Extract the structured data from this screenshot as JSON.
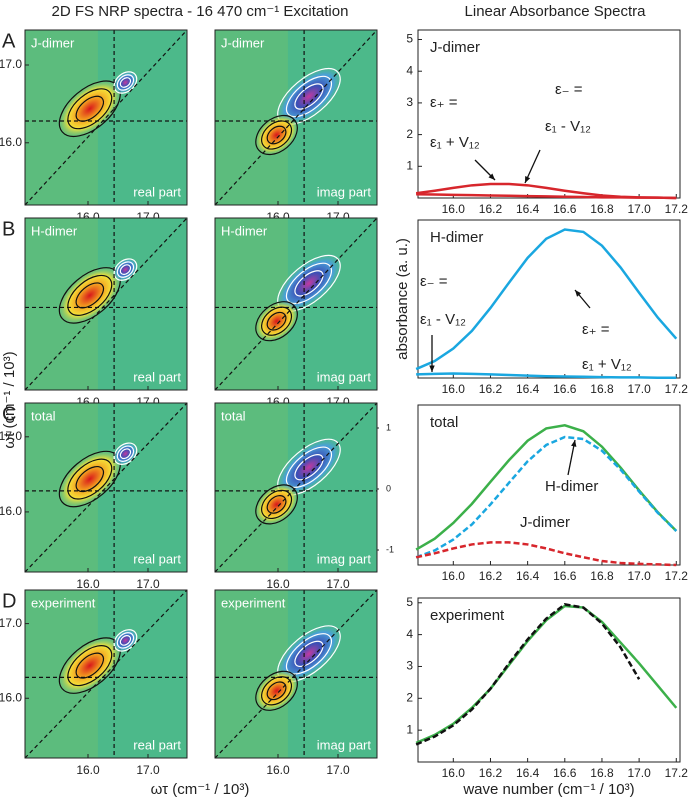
{
  "header": {
    "left_title": "2D FS NRP spectra - 16 470 cm⁻¹ Excitation",
    "right_title": "Linear Absorbance Spectra"
  },
  "panel_letters": [
    "A",
    "B",
    "C",
    "D"
  ],
  "map_axes": {
    "xlabel": "ωτ (cm⁻¹ / 10³)",
    "ylabel": "ωt (cm⁻¹ / 10³)"
  },
  "colorbar": {
    "ticks": [
      1,
      0,
      -1
    ],
    "ylim": [
      -1,
      1
    ]
  },
  "chart_data": [
    {
      "type": "map",
      "label": "J-dimer",
      "part": "real part",
      "xlim": [
        14.95,
        17.65
      ],
      "ylim": [
        15.2,
        17.45
      ],
      "xticks": [
        {
          "value": 16,
          "label": "16.0"
        },
        {
          "value": 17,
          "label": "17.0"
        }
      ],
      "yticks": [
        {
          "value": 16,
          "label": "16.0"
        },
        {
          "value": 17,
          "label": "17.0"
        }
      ]
    },
    {
      "type": "map",
      "label": "J-dimer",
      "part": "imag part",
      "xlim": [
        14.95,
        17.65
      ],
      "ylim": [
        15.2,
        17.45
      ],
      "xticks": [
        {
          "value": 16,
          "label": "16.0"
        },
        {
          "value": 17,
          "label": "17.0"
        }
      ]
    },
    {
      "type": "map",
      "label": "H-dimer",
      "part": "real part",
      "xlim": [
        14.95,
        17.65
      ],
      "ylim": [
        15.2,
        17.45
      ],
      "xticks": [
        {
          "value": 16,
          "label": "16.0"
        },
        {
          "value": 17,
          "label": "17.0"
        }
      ]
    },
    {
      "type": "map",
      "label": "H-dimer",
      "part": "imag part",
      "xlim": [
        14.95,
        17.65
      ],
      "ylim": [
        15.2,
        17.45
      ],
      "xticks": [
        {
          "value": 16,
          "label": "16.0"
        },
        {
          "value": 17,
          "label": "17.0"
        }
      ]
    },
    {
      "type": "map",
      "label": "total",
      "part": "real part",
      "xlim": [
        14.95,
        17.65
      ],
      "ylim": [
        15.2,
        17.45
      ],
      "xticks": [
        {
          "value": 16,
          "label": "16.0"
        },
        {
          "value": 17,
          "label": "17.0"
        }
      ],
      "yticks": [
        {
          "value": 16,
          "label": "16.0"
        },
        {
          "value": 17,
          "label": "17.0"
        }
      ]
    },
    {
      "type": "map",
      "label": "total",
      "part": "imag part",
      "xlim": [
        14.95,
        17.65
      ],
      "ylim": [
        15.2,
        17.45
      ],
      "xticks": [
        {
          "value": 16,
          "label": "16.0"
        },
        {
          "value": 17,
          "label": "17.0"
        }
      ]
    },
    {
      "type": "map",
      "label": "experiment",
      "part": "real part",
      "xlim": [
        14.95,
        17.65
      ],
      "ylim": [
        15.2,
        17.45
      ],
      "xticks": [
        {
          "value": 16,
          "label": "16.0"
        },
        {
          "value": 17,
          "label": "17.0"
        }
      ],
      "yticks": [
        {
          "value": 16,
          "label": "16.0"
        },
        {
          "value": 17,
          "label": "17.0"
        }
      ]
    },
    {
      "type": "map",
      "label": "experiment",
      "part": "imag part",
      "xlim": [
        14.95,
        17.65
      ],
      "ylim": [
        15.2,
        17.45
      ],
      "xticks": [
        {
          "value": 16,
          "label": "16.0"
        },
        {
          "value": 17,
          "label": "17.0"
        }
      ]
    },
    {
      "type": "line",
      "title": "J-dimer",
      "annotations": [
        "ε₊ =",
        "ε₁ + V₁₂",
        "ε₋ =",
        "ε₁ - V₁₂"
      ],
      "x": [
        15.8,
        15.9,
        16.0,
        16.1,
        16.2,
        16.3,
        16.4,
        16.5,
        16.6,
        16.7,
        16.8,
        16.9,
        17.0,
        17.1,
        17.2
      ],
      "series": [
        {
          "color": "#d7262c",
          "values": [
            0.15,
            0.23,
            0.32,
            0.4,
            0.44,
            0.44,
            0.4,
            0.32,
            0.23,
            0.15,
            0.08,
            0.04,
            0.02,
            0.01,
            0.0
          ]
        },
        {
          "color": "#d7262c",
          "values": [
            0.12,
            0.11,
            0.1,
            0.09,
            0.08,
            0.07,
            0.06,
            0.05,
            0.04,
            0.03,
            0.02,
            0.02,
            0.01,
            0.01,
            0.0
          ]
        }
      ],
      "xlim": [
        15.81,
        17.22
      ],
      "ylim": [
        0,
        5.3
      ],
      "xticks": [
        {
          "value": 16,
          "label": "16.0"
        },
        16.2,
        16.4,
        16.6,
        16.8,
        {
          "value": 17,
          "label": "17.0"
        },
        17.2
      ],
      "yticks": [
        1,
        2,
        3,
        4,
        5
      ]
    },
    {
      "type": "line",
      "title": "H-dimer",
      "ylabel": "absorbance (a. u.)",
      "annotations": [
        "ε₊ =",
        "ε₁ + V₁₂",
        "ε₋ =",
        "ε₁ - V₁₂"
      ],
      "x": [
        15.8,
        15.9,
        16.0,
        16.1,
        16.2,
        16.3,
        16.4,
        16.5,
        16.6,
        16.7,
        16.8,
        16.9,
        17.0,
        17.1,
        17.2
      ],
      "series": [
        {
          "color": "#1aa7e0",
          "values": [
            0.3,
            0.57,
            0.99,
            1.58,
            2.35,
            3.2,
            4.03,
            4.67,
            4.98,
            4.9,
            4.44,
            3.71,
            2.86,
            2.03,
            1.32
          ]
        },
        {
          "color": "#1aa7e0",
          "values": [
            0.12,
            0.14,
            0.15,
            0.14,
            0.12,
            0.1,
            0.08,
            0.06,
            0.05,
            0.04,
            0.03,
            0.02,
            0.02,
            0.01,
            0.01
          ]
        }
      ],
      "xlim": [
        15.81,
        17.22
      ],
      "ylim": [
        0,
        5.3
      ],
      "xticks": [
        {
          "value": 16,
          "label": "16.0"
        },
        16.2,
        16.4,
        16.6,
        16.8,
        {
          "value": 17,
          "label": "17.0"
        },
        17.2
      ]
    },
    {
      "type": "line",
      "title": "total",
      "annotations": [
        "H-dimer",
        "J-dimer"
      ],
      "x": [
        15.8,
        15.9,
        16.0,
        16.1,
        16.2,
        16.3,
        16.4,
        16.5,
        16.6,
        16.7,
        16.8,
        16.9,
        17.0,
        17.1,
        17.2
      ],
      "series": [
        {
          "color": "#3cb04a",
          "values": [
            0.54,
            0.92,
            1.47,
            2.14,
            2.91,
            3.67,
            4.35,
            4.78,
            4.89,
            4.68,
            4.14,
            3.41,
            2.61,
            1.85,
            1.19
          ]
        },
        {
          "color": "#1aa7e0",
          "dash": true,
          "values": [
            0.27,
            0.51,
            0.89,
            1.42,
            2.12,
            2.88,
            3.63,
            4.2,
            4.48,
            4.41,
            4.0,
            3.34,
            2.57,
            1.83,
            1.19
          ]
        },
        {
          "color": "#d7262c",
          "dash": true,
          "values": [
            0.27,
            0.41,
            0.58,
            0.72,
            0.79,
            0.79,
            0.72,
            0.58,
            0.41,
            0.27,
            0.14,
            0.07,
            0.04,
            0.02,
            0.0
          ]
        }
      ],
      "xlim": [
        15.81,
        17.22
      ],
      "ylim": [
        0,
        5.6
      ],
      "xticks": [
        {
          "value": 16,
          "label": "16.0"
        },
        16.2,
        16.4,
        16.6,
        16.8,
        {
          "value": 17,
          "label": "17.0"
        },
        17.2
      ]
    },
    {
      "type": "line",
      "title": "experiment",
      "xlabel": "wave number (cm⁻¹ / 10³)",
      "x": [
        15.8,
        15.9,
        16.0,
        16.1,
        16.2,
        16.3,
        16.4,
        16.5,
        16.6,
        16.7,
        16.8,
        16.9,
        17.0,
        17.1,
        17.2
      ],
      "series": [
        {
          "color": "#3cb04a",
          "values": [
            0.6,
            0.85,
            1.2,
            1.7,
            2.3,
            3.05,
            3.8,
            4.45,
            4.9,
            4.85,
            4.4,
            3.75,
            3.1,
            2.4,
            1.7
          ]
        },
        {
          "color": "#111111",
          "dash": true,
          "values": [
            0.55,
            0.8,
            1.15,
            1.65,
            2.3,
            3.1,
            3.85,
            4.5,
            4.95,
            4.85,
            4.35,
            3.6,
            2.6,
            null,
            null
          ]
        }
      ],
      "xlim": [
        15.81,
        17.22
      ],
      "ylim": [
        0,
        5.15
      ],
      "xticks": [
        {
          "value": 16,
          "label": "16.0"
        },
        16.2,
        16.4,
        16.6,
        16.8,
        {
          "value": 17,
          "label": "17.0"
        },
        17.2
      ],
      "yticks": [
        1,
        2,
        3,
        4,
        5
      ]
    }
  ]
}
